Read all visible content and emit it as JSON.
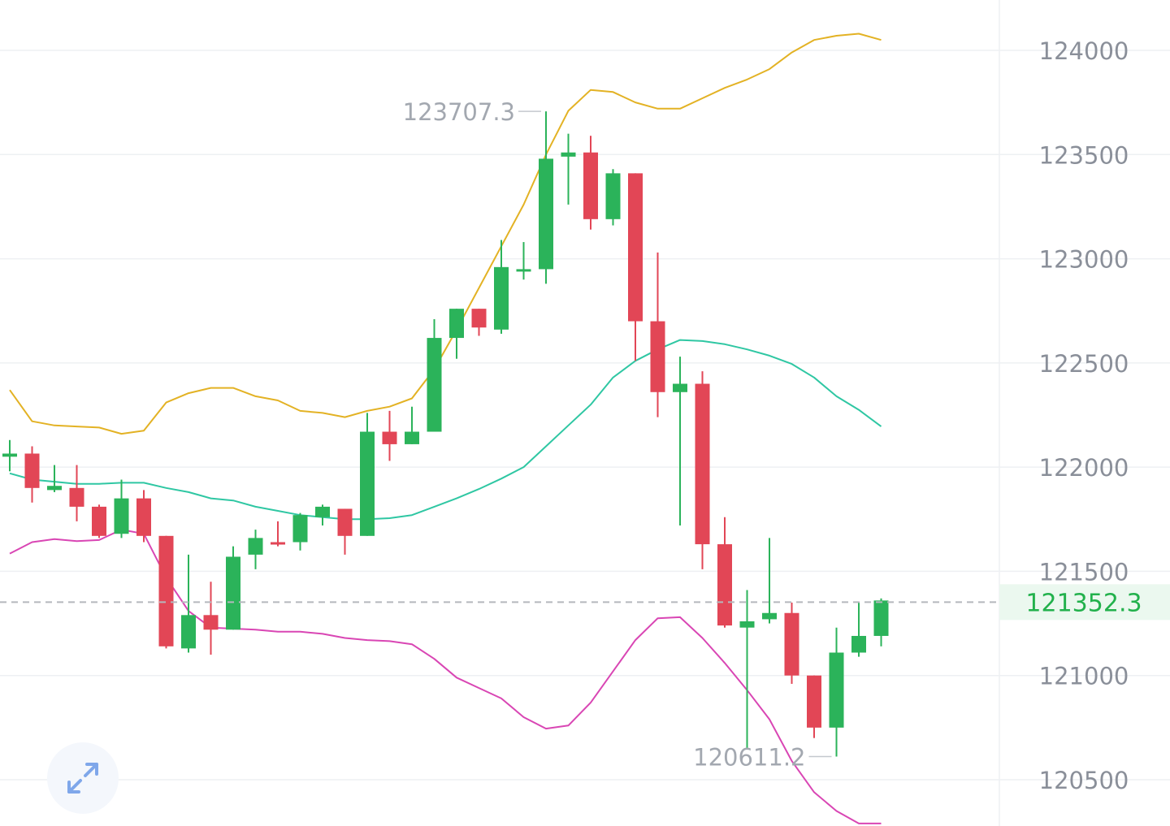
{
  "chart_data": {
    "type": "candlestick",
    "y_axis": {
      "ticks": [
        "124000",
        "123500",
        "123000",
        "122500",
        "122000",
        "121500",
        "121000",
        "120500"
      ],
      "tick_values": [
        124000,
        123500,
        123000,
        122500,
        122000,
        121500,
        121000,
        120500
      ],
      "range": [
        120290,
        124230
      ],
      "position": "right"
    },
    "current_price": {
      "value": 121352.3,
      "label": "121352.3"
    },
    "high_marker": {
      "value": 123707.3,
      "label": "123707.3",
      "candle_index": 24
    },
    "low_marker": {
      "value": 120611.2,
      "label": "120611.2",
      "candle_index": 37
    },
    "candles": [
      {
        "o": 122050,
        "h": 122130,
        "l": 121980,
        "c": 122065
      },
      {
        "o": 122065,
        "h": 122100,
        "l": 121830,
        "c": 121900
      },
      {
        "o": 121890,
        "h": 122010,
        "l": 121880,
        "c": 121910
      },
      {
        "o": 121900,
        "h": 122010,
        "l": 121740,
        "c": 121810
      },
      {
        "o": 121810,
        "h": 121820,
        "l": 121660,
        "c": 121670
      },
      {
        "o": 121680,
        "h": 121940,
        "l": 121660,
        "c": 121850
      },
      {
        "o": 121850,
        "h": 121890,
        "l": 121640,
        "c": 121670
      },
      {
        "o": 121670,
        "h": 121670,
        "l": 121130,
        "c": 121140
      },
      {
        "o": 121130,
        "h": 121580,
        "l": 121110,
        "c": 121290
      },
      {
        "o": 121290,
        "h": 121450,
        "l": 121100,
        "c": 121220
      },
      {
        "o": 121220,
        "h": 121620,
        "l": 121220,
        "c": 121570
      },
      {
        "o": 121580,
        "h": 121700,
        "l": 121510,
        "c": 121660
      },
      {
        "o": 121640,
        "h": 121740,
        "l": 121620,
        "c": 121630
      },
      {
        "o": 121640,
        "h": 121780,
        "l": 121600,
        "c": 121770
      },
      {
        "o": 121760,
        "h": 121820,
        "l": 121720,
        "c": 121810
      },
      {
        "o": 121800,
        "h": 121800,
        "l": 121580,
        "c": 121670
      },
      {
        "o": 121670,
        "h": 122260,
        "l": 121670,
        "c": 122170
      },
      {
        "o": 122170,
        "h": 122270,
        "l": 122030,
        "c": 122110
      },
      {
        "o": 122110,
        "h": 122290,
        "l": 122110,
        "c": 122170
      },
      {
        "o": 122170,
        "h": 122710,
        "l": 122170,
        "c": 122620
      },
      {
        "o": 122620,
        "h": 122760,
        "l": 122520,
        "c": 122760
      },
      {
        "o": 122760,
        "h": 122760,
        "l": 122630,
        "c": 122670
      },
      {
        "o": 122660,
        "h": 123090,
        "l": 122640,
        "c": 122960
      },
      {
        "o": 122950,
        "h": 123080,
        "l": 122900,
        "c": 122950
      },
      {
        "o": 122950,
        "h": 123707.3,
        "l": 122880,
        "c": 123480
      },
      {
        "o": 123490,
        "h": 123600,
        "l": 123260,
        "c": 123510
      },
      {
        "o": 123510,
        "h": 123590,
        "l": 123140,
        "c": 123190
      },
      {
        "o": 123190,
        "h": 123430,
        "l": 123160,
        "c": 123410
      },
      {
        "o": 123410,
        "h": 123410,
        "l": 122510,
        "c": 122700
      },
      {
        "o": 122700,
        "h": 123030,
        "l": 122240,
        "c": 122360
      },
      {
        "o": 122360,
        "h": 122530,
        "l": 121720,
        "c": 122400
      },
      {
        "o": 122400,
        "h": 122460,
        "l": 121510,
        "c": 121630
      },
      {
        "o": 121630,
        "h": 121760,
        "l": 121230,
        "c": 121240
      },
      {
        "o": 121230,
        "h": 121410,
        "l": 120650,
        "c": 121260
      },
      {
        "o": 121270,
        "h": 121660,
        "l": 121250,
        "c": 121300
      },
      {
        "o": 121300,
        "h": 121350,
        "l": 120960,
        "c": 121000
      },
      {
        "o": 121000,
        "h": 121000,
        "l": 120700,
        "c": 120750
      },
      {
        "o": 120750,
        "h": 121230,
        "l": 120611.2,
        "c": 121110
      },
      {
        "o": 121110,
        "h": 121350,
        "l": 121090,
        "c": 121190
      },
      {
        "o": 121190,
        "h": 121370,
        "l": 121140,
        "c": 121360
      }
    ],
    "indicators": [
      {
        "kind": "upper-band",
        "color": "#e3b224",
        "values": [
          122370,
          122220,
          122200,
          122195,
          122190,
          122160,
          122175,
          122310,
          122355,
          122380,
          122380,
          122340,
          122320,
          122270,
          122260,
          122240,
          122270,
          122290,
          122330,
          122470,
          122660,
          122860,
          123060,
          123260,
          123500,
          123710,
          123810,
          123800,
          123750,
          123720,
          123720,
          123770,
          123820,
          123860,
          123910,
          123990,
          124050,
          124070,
          124080,
          124050
        ]
      },
      {
        "kind": "middle-band",
        "color": "#2fc7a3",
        "values": [
          121970,
          121940,
          121930,
          121920,
          121920,
          121925,
          121925,
          121900,
          121880,
          121850,
          121840,
          121810,
          121790,
          121770,
          121760,
          121750,
          121750,
          121755,
          121770,
          121810,
          121850,
          121895,
          121945,
          122000,
          122100,
          122200,
          122300,
          122430,
          122510,
          122565,
          122610,
          122605,
          122590,
          122565,
          122535,
          122495,
          122430,
          122340,
          122275,
          122195
        ]
      },
      {
        "kind": "lower-band",
        "color": "#d946b4",
        "values": [
          121585,
          121640,
          121655,
          121645,
          121650,
          121700,
          121680,
          121470,
          121310,
          121230,
          121225,
          121220,
          121210,
          121210,
          121200,
          121180,
          121170,
          121165,
          121150,
          121080,
          120990,
          120940,
          120890,
          120800,
          120745,
          120760,
          120870,
          121020,
          121170,
          121275,
          121280,
          121180,
          121060,
          120930,
          120790,
          120590,
          120440,
          120350,
          120290,
          120290
        ]
      }
    ],
    "colors": {
      "up": "#2bb35a",
      "down": "#e24656",
      "grid": "#eef0f3",
      "axis_text": "#8a8f99",
      "price_line": "#b5b8bd",
      "price_tag_bg": "#ebf8ef"
    },
    "grid": true
  },
  "controls": {
    "expand_icon": "expand-arrows-icon"
  }
}
